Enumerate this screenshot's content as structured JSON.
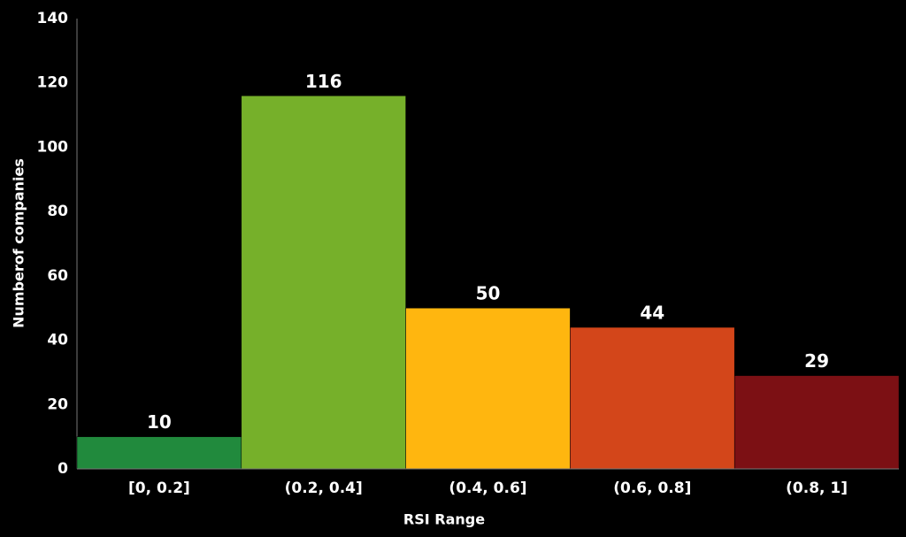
{
  "chart_data": {
    "type": "bar",
    "x_label": "RSI Range",
    "y_label": "Numberof companies",
    "categories": [
      "[0, 0.2]",
      "(0.2, 0.4]",
      "(0.4, 0.6]",
      "(0.6, 0.8]",
      "(0.8, 1]"
    ],
    "values": [
      10,
      116,
      50,
      44,
      29
    ],
    "colors": [
      "#218a3d",
      "#76b02a",
      "#ffb60f",
      "#d3461a",
      "#7c1014"
    ],
    "ylim": [
      0,
      140
    ],
    "yticks": [
      0,
      20,
      40,
      60,
      80,
      100,
      120,
      140
    ],
    "grid": false
  }
}
